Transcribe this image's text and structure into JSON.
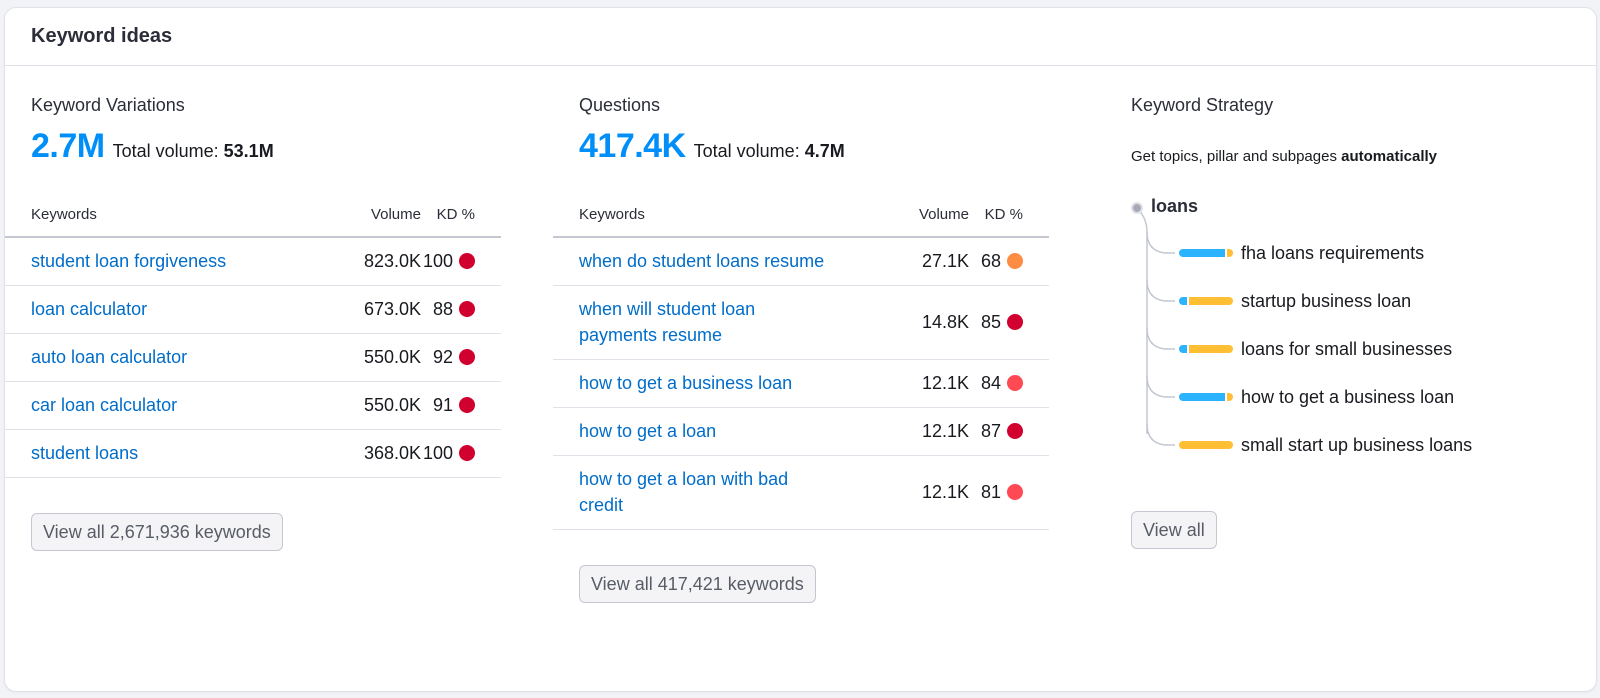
{
  "card": {
    "title": "Keyword ideas"
  },
  "colors": {
    "accent_blue": "#008ff8",
    "link_blue": "#006dca",
    "kd_very_hard": "#d1002f",
    "kd_hard": "#ff4953",
    "kd_difficult": "#ff8c43",
    "bar_info": "#2bb3ff",
    "bar_commercial": "#ffbe34"
  },
  "variations": {
    "title": "Keyword Variations",
    "count": "2.7M",
    "total_label": "Total volume:",
    "total_value": "53.1M",
    "columns": {
      "keyword": "Keywords",
      "volume": "Volume",
      "kd": "KD %"
    },
    "rows": [
      {
        "keyword": "student loan forgiveness",
        "volume": "823.0K",
        "kd": "100",
        "kd_color": "#d1002f"
      },
      {
        "keyword": "loan calculator",
        "volume": "673.0K",
        "kd": "88",
        "kd_color": "#d1002f"
      },
      {
        "keyword": "auto loan calculator",
        "volume": "550.0K",
        "kd": "92",
        "kd_color": "#d1002f"
      },
      {
        "keyword": "car loan calculator",
        "volume": "550.0K",
        "kd": "91",
        "kd_color": "#d1002f"
      },
      {
        "keyword": "student loans",
        "volume": "368.0K",
        "kd": "100",
        "kd_color": "#d1002f"
      }
    ],
    "view_all_label": "View all 2,671,936 keywords"
  },
  "questions": {
    "title": "Questions",
    "count": "417.4K",
    "total_label": "Total volume:",
    "total_value": "4.7M",
    "columns": {
      "keyword": "Keywords",
      "volume": "Volume",
      "kd": "KD %"
    },
    "rows": [
      {
        "keyword": "when do student loans resume",
        "volume": "27.1K",
        "kd": "68",
        "kd_color": "#ff8c43"
      },
      {
        "keyword": "when will student loan payments resume",
        "volume": "14.8K",
        "kd": "85",
        "kd_color": "#d1002f"
      },
      {
        "keyword": "how to get a business loan",
        "volume": "12.1K",
        "kd": "84",
        "kd_color": "#ff4953"
      },
      {
        "keyword": "how to get a loan",
        "volume": "12.1K",
        "kd": "87",
        "kd_color": "#d1002f"
      },
      {
        "keyword": "how to get a loan with bad credit",
        "volume": "12.1K",
        "kd": "81",
        "kd_color": "#ff4953"
      }
    ],
    "view_all_label": "View all 417,421 keywords"
  },
  "strategy": {
    "title": "Keyword Strategy",
    "subtitle_prefix": "Get topics, pillar and subpages",
    "subtitle_bold": "automatically",
    "root": "loans",
    "branches": [
      {
        "label": "fha loans requirements",
        "info_pct": 85
      },
      {
        "label": "startup business loan",
        "info_pct": 15
      },
      {
        "label": "loans for small businesses",
        "info_pct": 15
      },
      {
        "label": "how to get a business loan",
        "info_pct": 85
      },
      {
        "label": "small start up business loans",
        "info_pct": 0
      }
    ],
    "view_all_label": "View all"
  }
}
